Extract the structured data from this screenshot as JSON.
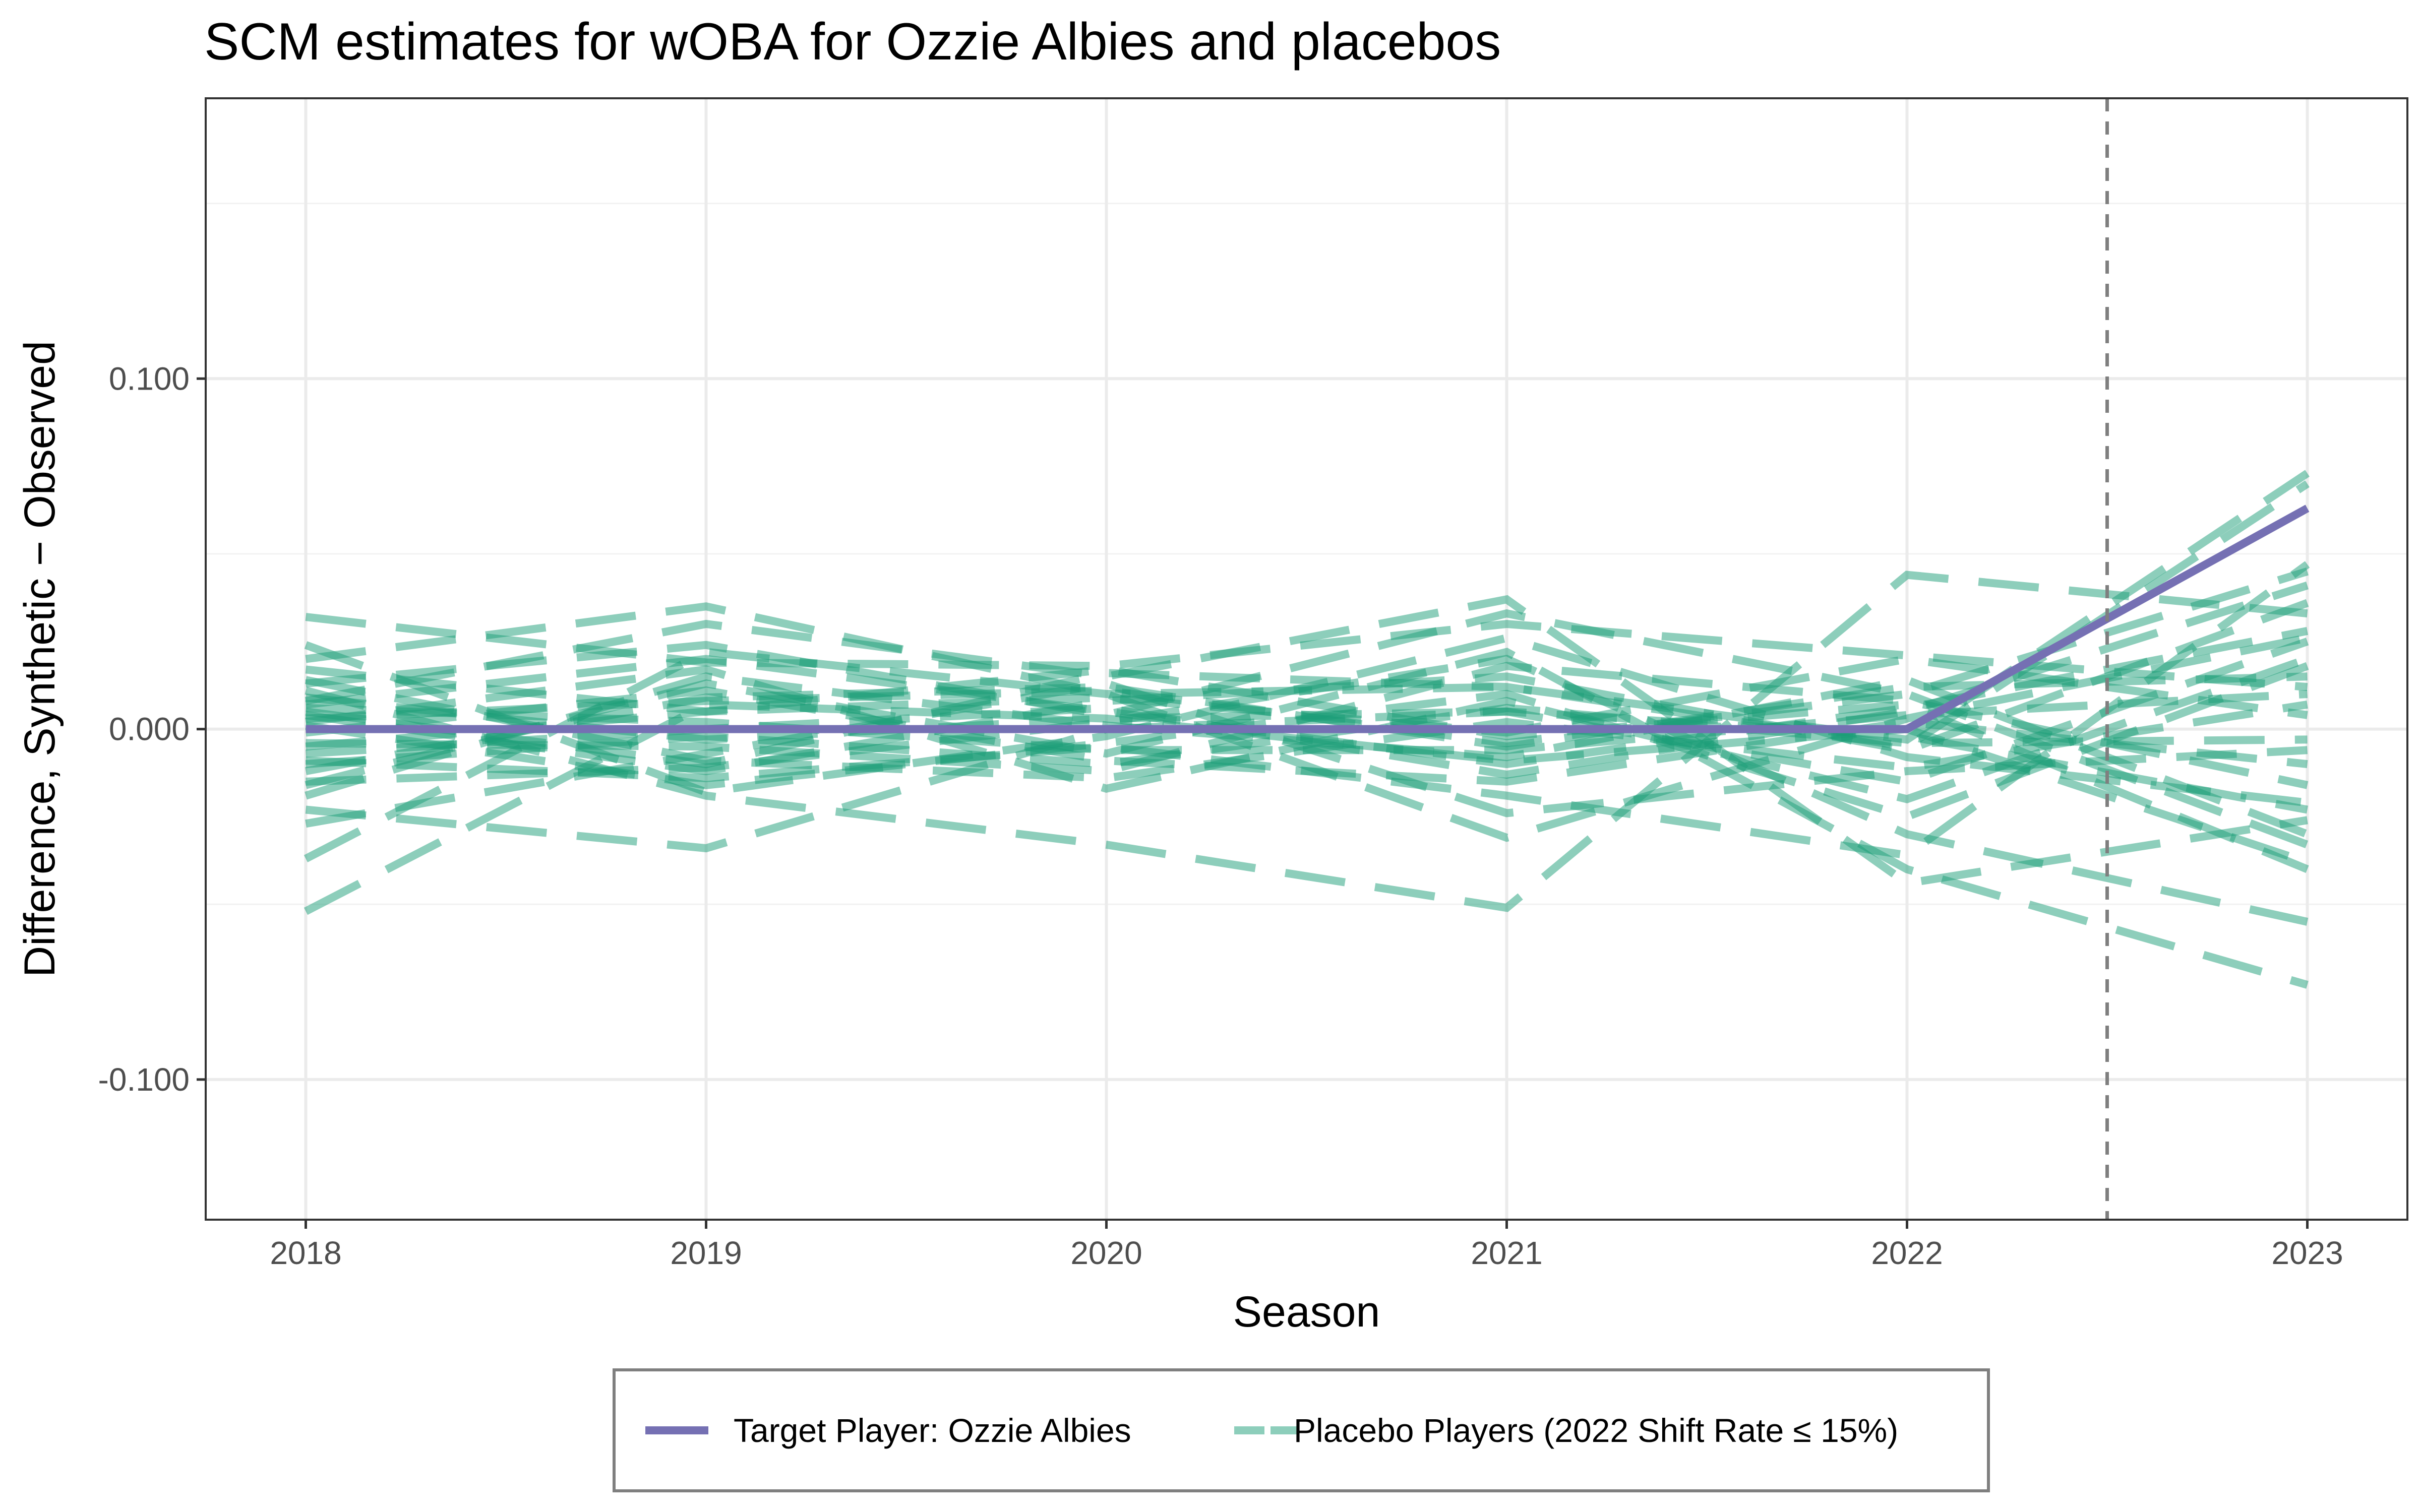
{
  "chart_data": {
    "type": "line",
    "title": "SCM estimates for wOBA for Ozzie Albies and placebos",
    "xlabel": "Season",
    "ylabel": "Difference, Synthetic − Observed",
    "x": [
      2018,
      2019,
      2020,
      2021,
      2022,
      2023
    ],
    "x_ticks": [
      "2018",
      "2019",
      "2020",
      "2021",
      "2022",
      "2023"
    ],
    "xlim": [
      2017.75,
      2023.25
    ],
    "y_ticks": [
      -0.1,
      0.0,
      0.1
    ],
    "y_tick_labels": [
      "-0.100",
      "0.000",
      "0.100"
    ],
    "ylim": [
      -0.14,
      0.18
    ],
    "vline_x": 2022.5,
    "grid": true,
    "legend_position": "bottom",
    "colors": {
      "target": "#7570b3",
      "placebo": "#1b9e77",
      "vline": "#7f7f7f"
    },
    "target_series": {
      "name": "Target Player: Ozzie Albies",
      "values": [
        0.0,
        0.0,
        0.0,
        0.0,
        0.0,
        0.063
      ]
    },
    "placebo_legend": "Placebo Players (2022 Shift Rate ≤ 15%)",
    "placebo_series": [
      {
        "values": [
          0.032,
          0.019,
          0.018,
          0.03,
          0.021,
          0.012
        ]
      },
      {
        "values": [
          -0.052,
          0.007,
          0.003,
          -0.009,
          0.0,
          -0.038
        ]
      },
      {
        "values": [
          -0.037,
          0.022,
          0.01,
          0.012,
          -0.003,
          0.073
        ]
      },
      {
        "values": [
          0.02,
          0.035,
          0.01,
          -0.031,
          0.003,
          0.026
        ]
      },
      {
        "values": [
          -0.023,
          -0.034,
          0.0,
          0.005,
          -0.002,
          -0.023
        ]
      },
      {
        "values": [
          0.011,
          -0.019,
          -0.033,
          -0.051,
          0.044,
          0.033
        ]
      },
      {
        "values": [
          0.008,
          0.03,
          0.015,
          0.037,
          -0.044,
          -0.026
        ]
      },
      {
        "values": [
          -0.016,
          0.013,
          -0.007,
          0.022,
          -0.04,
          -0.073
        ]
      },
      {
        "values": [
          0.005,
          -0.01,
          0.016,
          0.012,
          -0.005,
          0.07
        ]
      },
      {
        "values": [
          -0.009,
          -0.014,
          -0.005,
          -0.019,
          -0.036,
          0.047
        ]
      },
      {
        "values": [
          0.017,
          0.005,
          0.009,
          -0.001,
          0.02,
          0.004
        ]
      },
      {
        "values": [
          -0.004,
          -0.005,
          -0.012,
          0.018,
          0.008,
          -0.016
        ]
      },
      {
        "values": [
          0.013,
          0.024,
          0.004,
          0.033,
          0.01,
          -0.033
        ]
      },
      {
        "values": [
          -0.027,
          -0.007,
          0.013,
          -0.024,
          -0.012,
          -0.006
        ]
      },
      {
        "values": [
          0.002,
          0.017,
          -0.017,
          0.008,
          -0.02,
          0.02
        ]
      },
      {
        "values": [
          -0.007,
          0.0,
          0.006,
          -0.013,
          0.005,
          0.041
        ]
      },
      {
        "values": [
          0.024,
          -0.018,
          -0.002,
          0.026,
          -0.008,
          -0.021
        ]
      },
      {
        "values": [
          -0.012,
          0.009,
          0.012,
          -0.005,
          0.012,
          0.015
        ]
      },
      {
        "values": [
          0.009,
          -0.003,
          0.003,
          0.005,
          -0.015,
          0.025
        ]
      },
      {
        "values": [
          -0.001,
          0.011,
          -0.009,
          -0.015,
          0.002,
          -0.01
        ]
      },
      {
        "values": [
          0.004,
          -0.012,
          0.008,
          0.015,
          -0.006,
          0.036
        ]
      },
      {
        "values": [
          -0.019,
          0.015,
          0.001,
          -0.008,
          0.014,
          -0.03
        ]
      },
      {
        "values": [
          0.014,
          -0.009,
          -0.014,
          0.002,
          -0.011,
          0.007
        ]
      },
      {
        "values": [
          -0.005,
          0.005,
          0.017,
          -0.002,
          0.007,
          -0.04
        ]
      },
      {
        "values": [
          0.001,
          -0.016,
          -0.004,
          0.01,
          -0.025,
          0.018
        ]
      },
      {
        "values": [
          0.007,
          0.02,
          0.005,
          -0.01,
          0.006,
          0.028
        ]
      },
      {
        "values": [
          -0.01,
          -0.002,
          -0.01,
          0.006,
          -0.004,
          -0.003
        ]
      },
      {
        "values": [
          0.003,
          0.008,
          0.011,
          -0.004,
          0.01,
          0.045
        ]
      },
      {
        "values": [
          -0.015,
          -0.011,
          0.002,
          0.02,
          -0.03,
          -0.055
        ]
      },
      {
        "values": [
          0.006,
          0.002,
          -0.006,
          -0.006,
          0.004,
          0.01
        ]
      }
    ]
  }
}
